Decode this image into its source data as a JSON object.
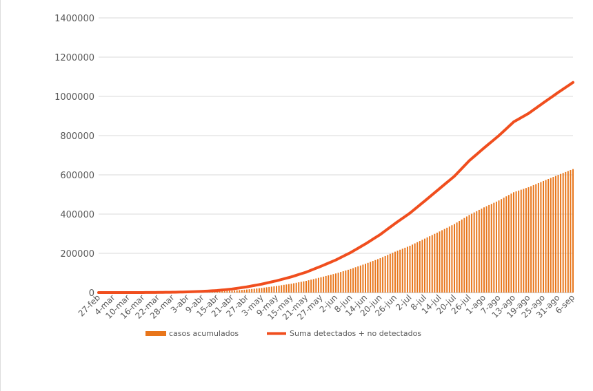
{
  "chart_data": {
    "type": "bar+line",
    "title": "",
    "xlabel": "",
    "ylabel": "",
    "ylim": [
      0,
      1400000
    ],
    "yticks": [
      "0",
      "200000",
      "400000",
      "600000",
      "800000",
      "1000000",
      "1200000",
      "1400000"
    ],
    "yticks_values": [
      0,
      200000,
      400000,
      600000,
      800000,
      1000000,
      1200000,
      1400000
    ],
    "grid": true,
    "legend_placement": "bottom",
    "x_start": "27-feb",
    "x_end": "6-sep",
    "xtick_labels": [
      "27-feb",
      "4-mar",
      "10-mar",
      "16-mar",
      "22-mar",
      "28-mar",
      "3-abr",
      "9-abr",
      "15-abr",
      "21-abr",
      "27-abr",
      "3-may",
      "9-may",
      "15-may",
      "21-may",
      "27-may",
      "2-jun",
      "8-jun",
      "14-jun",
      "20-jun",
      "26-jun",
      "2-jul",
      "8-jul",
      "14-jul",
      "20-jul",
      "26-jul",
      "1-ago",
      "7-ago",
      "13-ago",
      "19-ago",
      "25-ago",
      "31-ago",
      "6-sep"
    ],
    "series": [
      {
        "name": "casos acumulados",
        "kind": "bar",
        "color": "#E8751A",
        "points": [
          [
            "27-feb",
            1
          ],
          [
            "4-mar",
            5
          ],
          [
            "10-mar",
            7
          ],
          [
            "16-mar",
            82
          ],
          [
            "22-mar",
            316
          ],
          [
            "28-mar",
            848
          ],
          [
            "3-abr",
            1688
          ],
          [
            "9-abr",
            3181
          ],
          [
            "15-abr",
            5399
          ],
          [
            "21-abr",
            9501
          ],
          [
            "27-abr",
            15529
          ],
          [
            "3-may",
            23471
          ],
          [
            "9-may",
            33460
          ],
          [
            "15-may",
            45032
          ],
          [
            "21-may",
            59567
          ],
          [
            "27-may",
            78023
          ],
          [
            "2-jun",
            97326
          ],
          [
            "8-jun",
            120102
          ],
          [
            "14-jun",
            146837
          ],
          [
            "20-jun",
            175202
          ],
          [
            "26-jun",
            208392
          ],
          [
            "2-jul",
            238511
          ],
          [
            "8-jul",
            275003
          ],
          [
            "14-jul",
            311486
          ],
          [
            "20-jul",
            349396
          ],
          [
            "26-jul",
            395489
          ],
          [
            "1-ago",
            434193
          ],
          [
            "7-ago",
            469407
          ],
          [
            "13-ago",
            511369
          ],
          [
            "19-ago",
            537031
          ],
          [
            "25-ago",
            568621
          ],
          [
            "31-ago",
            599560
          ],
          [
            "6-sep",
            629409
          ]
        ]
      },
      {
        "name": "Suma detectados + no detectados",
        "kind": "line",
        "color": "#F04E1E",
        "points": [
          [
            "27-feb",
            1
          ],
          [
            "4-mar",
            8
          ],
          [
            "10-mar",
            14
          ],
          [
            "16-mar",
            180
          ],
          [
            "22-mar",
            650
          ],
          [
            "28-mar",
            1700
          ],
          [
            "3-abr",
            3300
          ],
          [
            "9-abr",
            6200
          ],
          [
            "15-abr",
            10500
          ],
          [
            "21-abr",
            18000
          ],
          [
            "27-abr",
            29000
          ],
          [
            "3-may",
            43000
          ],
          [
            "9-may",
            60000
          ],
          [
            "15-may",
            80000
          ],
          [
            "21-may",
            104000
          ],
          [
            "27-may",
            134000
          ],
          [
            "2-jun",
            166000
          ],
          [
            "8-jun",
            204000
          ],
          [
            "14-jun",
            248000
          ],
          [
            "20-jun",
            296000
          ],
          [
            "26-jun",
            352000
          ],
          [
            "2-jul",
            405000
          ],
          [
            "8-jul",
            467000
          ],
          [
            "14-jul",
            530000
          ],
          [
            "20-jul",
            593000
          ],
          [
            "26-jul",
            672000
          ],
          [
            "1-ago",
            737000
          ],
          [
            "7-ago",
            800000
          ],
          [
            "13-ago",
            870000
          ],
          [
            "19-ago",
            913000
          ],
          [
            "25-ago",
            967000
          ],
          [
            "31-ago",
            1020000
          ],
          [
            "6-sep",
            1071000
          ]
        ]
      }
    ]
  }
}
